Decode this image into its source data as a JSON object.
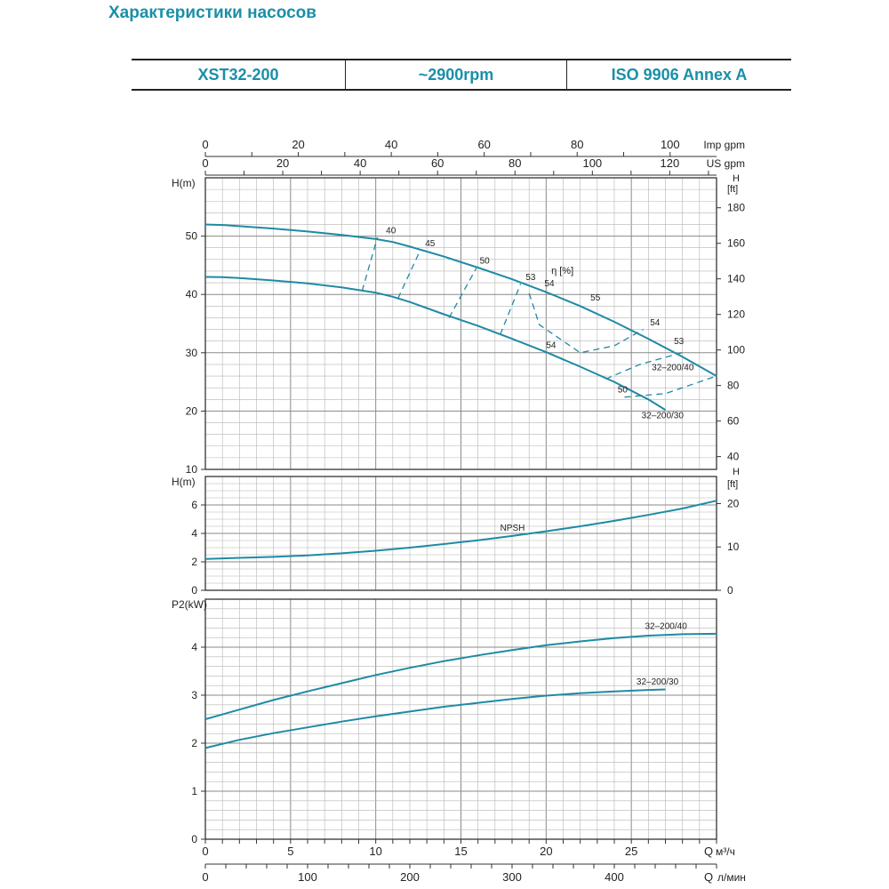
{
  "page": {
    "title": "Характеристики насосов",
    "model": "XST32-200",
    "speed": "~2900rpm",
    "standard": "ISO 9906   Annex A"
  },
  "colors": {
    "curve": "#1e8aa5",
    "grid": "#b5b5b5",
    "frame": "#333333"
  },
  "chart_data": [
    {
      "type": "line",
      "panel": "head",
      "ylabel": "H(m)",
      "ylabel_right": "H [ft]",
      "x_units": "Q м³/ч",
      "xlim": [
        0,
        30
      ],
      "ylim": [
        10,
        60
      ],
      "yticks": [
        10,
        20,
        30,
        40,
        50
      ],
      "yticks_right": [
        40,
        60,
        80,
        100,
        120,
        140,
        160,
        180
      ],
      "top_axes": [
        {
          "label": "Imp gpm",
          "ticks": [
            0,
            20,
            40,
            60,
            80,
            100
          ]
        },
        {
          "label": "US gpm",
          "ticks": [
            0,
            20,
            40,
            60,
            80,
            100,
            120
          ]
        }
      ],
      "series": [
        {
          "name": "32-200/40",
          "x": [
            0,
            1,
            2,
            4,
            6,
            8,
            10,
            11,
            12,
            14,
            16,
            18,
            20,
            22,
            24,
            26,
            28,
            30
          ],
          "y": [
            52.0,
            51.9,
            51.7,
            51.3,
            50.8,
            50.2,
            49.5,
            49.0,
            48.2,
            46.5,
            44.6,
            42.6,
            40.4,
            38.0,
            35.3,
            32.4,
            29.3,
            26.0
          ]
        },
        {
          "name": "32-200/30",
          "x": [
            0,
            1,
            2,
            4,
            6,
            8,
            10,
            11,
            12,
            14,
            16,
            18,
            20,
            22,
            24,
            26,
            27
          ],
          "y": [
            43.0,
            42.95,
            42.8,
            42.4,
            41.9,
            41.2,
            40.3,
            39.6,
            38.7,
            36.6,
            34.6,
            32.4,
            30.1,
            27.6,
            25.0,
            22.0,
            20.2
          ]
        }
      ],
      "efficiency_label": "η [%]",
      "efficiency_contours": [
        {
          "value": "40",
          "x": [
            9.2,
            10.1
          ],
          "y": [
            40.6,
            49.8
          ]
        },
        {
          "value": "45",
          "x": [
            11.3,
            12.6
          ],
          "y": [
            39.3,
            47.5
          ]
        },
        {
          "value": "50",
          "x": [
            14.3,
            15.9
          ],
          "y": [
            36.0,
            44.5
          ]
        },
        {
          "value": "53",
          "x": [
            17.3,
            18.5
          ],
          "y": [
            33.1,
            41.8
          ]
        },
        {
          "value": "54",
          "x": [
            19.0,
            19.6,
            22.0,
            24.0,
            25.7
          ],
          "y": [
            40.2,
            34.8,
            30.0,
            31.2,
            34.0
          ]
        },
        {
          "value": "53",
          "x": [
            23.5,
            25.5,
            28.2
          ],
          "y": [
            25.5,
            28.0,
            30.2
          ]
        },
        {
          "value": "50",
          "x": [
            24.6,
            27.0,
            30.0
          ],
          "y": [
            22.4,
            23.0,
            26.0
          ]
        }
      ],
      "annotations": [
        {
          "text": "40",
          "x": 10.6,
          "y": 50.5
        },
        {
          "text": "45",
          "x": 12.9,
          "y": 48.3
        },
        {
          "text": "50",
          "x": 16.1,
          "y": 45.3
        },
        {
          "text": "53",
          "x": 18.8,
          "y": 42.5
        },
        {
          "text": "54",
          "x": 19.9,
          "y": 41.4
        },
        {
          "text": "55",
          "x": 22.6,
          "y": 39.0
        },
        {
          "text": "54",
          "x": 26.1,
          "y": 34.7
        },
        {
          "text": "53",
          "x": 27.5,
          "y": 31.5
        },
        {
          "text": "54",
          "x": 20.0,
          "y": 30.8
        },
        {
          "text": "50",
          "x": 24.2,
          "y": 23.2
        },
        {
          "text": "32–200/40",
          "x": 26.2,
          "y": 27.0
        },
        {
          "text": "32–200/30",
          "x": 25.6,
          "y": 18.8
        }
      ]
    },
    {
      "type": "line",
      "panel": "npsh",
      "ylabel": "H(m)",
      "ylabel_right": "H [ft]",
      "xlim": [
        0,
        30
      ],
      "ylim": [
        0,
        8
      ],
      "yticks": [
        0,
        2,
        4,
        6
      ],
      "yticks_right": [
        0,
        10,
        20
      ],
      "series": [
        {
          "name": "NPSH",
          "x": [
            0,
            2,
            4,
            6,
            8,
            10,
            12,
            14,
            16,
            18,
            20,
            22,
            24,
            26,
            28,
            30
          ],
          "y": [
            2.2,
            2.28,
            2.35,
            2.45,
            2.6,
            2.78,
            3.0,
            3.25,
            3.52,
            3.82,
            4.15,
            4.5,
            4.88,
            5.3,
            5.75,
            6.3
          ]
        }
      ],
      "annotations": [
        {
          "text": "NPSH",
          "x": 17.3,
          "y": 4.2
        }
      ]
    },
    {
      "type": "line",
      "panel": "power",
      "ylabel": "P2(kW)",
      "xlim": [
        0,
        30
      ],
      "ylim": [
        0,
        5
      ],
      "yticks": [
        0,
        1,
        2,
        3,
        4
      ],
      "xlabel_bottom": "Q м³/ч",
      "xticks_bottom": [
        0,
        5,
        10,
        15,
        20,
        25
      ],
      "second_axis": {
        "label": "Q л/мин",
        "ticks": [
          0,
          100,
          200,
          300,
          400
        ]
      },
      "series": [
        {
          "name": "32-200/40",
          "x": [
            0,
            2,
            4,
            6,
            8,
            10,
            12,
            14,
            16,
            18,
            20,
            22,
            24,
            26,
            28,
            30
          ],
          "y": [
            2.5,
            2.7,
            2.9,
            3.08,
            3.25,
            3.42,
            3.57,
            3.71,
            3.83,
            3.94,
            4.04,
            4.12,
            4.19,
            4.24,
            4.27,
            4.28
          ]
        },
        {
          "name": "32-200/30",
          "x": [
            0,
            2,
            4,
            6,
            8,
            10,
            12,
            14,
            16,
            18,
            20,
            22,
            24,
            26,
            27
          ],
          "y": [
            1.9,
            2.07,
            2.21,
            2.33,
            2.45,
            2.56,
            2.66,
            2.76,
            2.84,
            2.92,
            2.99,
            3.04,
            3.08,
            3.11,
            3.12
          ]
        }
      ],
      "annotations": [
        {
          "text": "32–200/40",
          "x": 25.8,
          "y": 4.38
        },
        {
          "text": "32–200/30",
          "x": 25.3,
          "y": 3.22
        }
      ]
    }
  ]
}
